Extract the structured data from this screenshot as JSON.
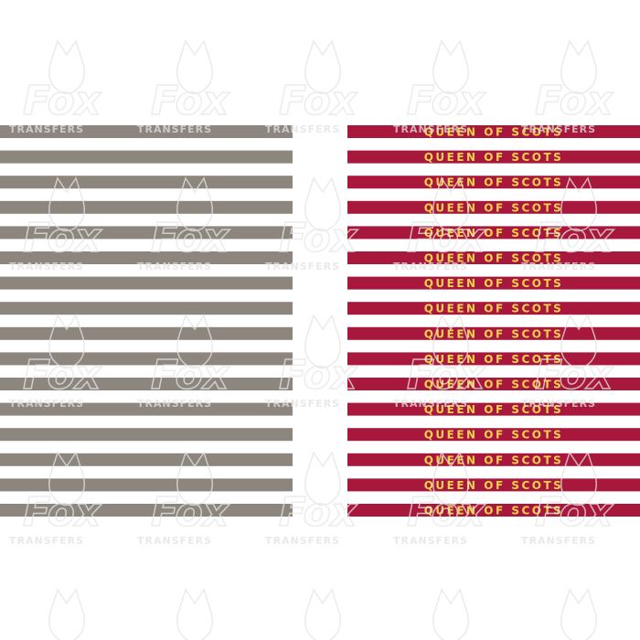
{
  "watermark": {
    "logo": "Fox",
    "caption": "TRANSFERS"
  },
  "red_strips": [
    "QUEEN OF SCOTS",
    "QUEEN OF SCOTS",
    "QUEEN OF SCOTS",
    "QUEEN OF SCOTS",
    "QUEEN OF SCOTS",
    "QUEEN OF SCOTS",
    "QUEEN OF SCOTS",
    "QUEEN OF SCOTS",
    "QUEEN OF SCOTS",
    "QUEEN OF SCOTS",
    "QUEEN OF SCOTS",
    "QUEEN OF SCOTS",
    "QUEEN OF SCOTS",
    "QUEEN OF SCOTS",
    "QUEEN OF SCOTS",
    "QUEEN OF SCOTS"
  ]
}
